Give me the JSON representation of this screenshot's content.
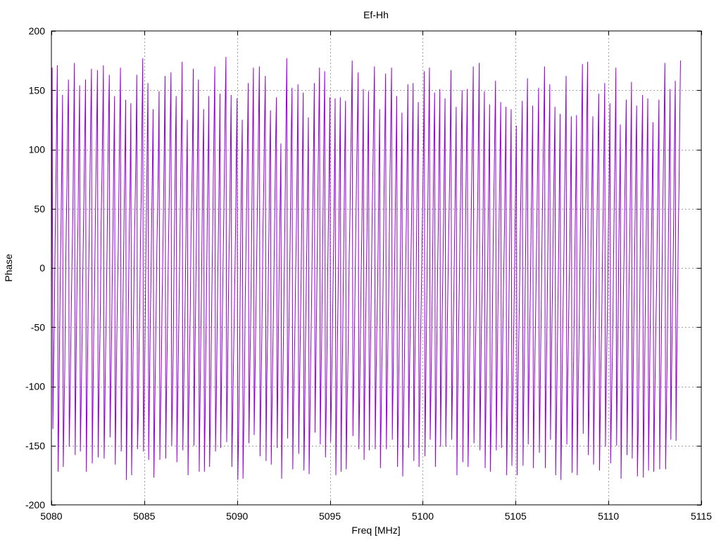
{
  "chart_data": {
    "type": "line",
    "title": "Ef-Hh",
    "xlabel": "Freq [MHz]",
    "ylabel": "Phase",
    "xlim": [
      5080,
      5115
    ],
    "ylim": [
      -200,
      200
    ],
    "xticks": [
      5080,
      5085,
      5090,
      5095,
      5100,
      5105,
      5110,
      5115
    ],
    "yticks": [
      -200,
      -150,
      -100,
      -50,
      0,
      50,
      100,
      150,
      200
    ],
    "grid": true,
    "legend": "none",
    "series": [
      {
        "color": "#9400d3",
        "x_start": 5080.0,
        "x_step": 0.04,
        "values": [
          -45,
          169,
          -136,
          -81,
          -40,
          23,
          65,
          121,
          171,
          -172,
          -128,
          -61,
          -8,
          38,
          87,
          146,
          -168,
          -126,
          -85,
          -15,
          35,
          69,
          125,
          159,
          -151,
          -117,
          -70,
          -25,
          15,
          49,
          117,
          173,
          -158,
          -98,
          -37,
          6,
          46,
          107,
          154,
          -155,
          -117,
          -74,
          -18,
          26,
          67,
          117,
          159,
          -172,
          -116,
          -61,
          -11,
          31,
          79,
          128,
          168,
          -165,
          -114,
          -56,
          -23,
          29,
          79,
          120,
          167,
          -160,
          -111,
          -72,
          -32,
          38,
          75,
          119,
          171,
          -161,
          -121,
          -70,
          -29,
          18,
          80,
          128,
          163,
          -143,
          -103,
          -59,
          -8,
          39,
          95,
          145,
          -166,
          -115,
          -63,
          -18,
          15,
          69,
          123,
          169,
          -155,
          -98,
          -41,
          -2,
          51,
          93,
          142,
          -179,
          -119,
          -65,
          -14,
          36,
          72,
          139,
          -175,
          -124,
          -70,
          -23,
          28,
          63,
          107,
          163,
          -153,
          -123,
          -70,
          -31,
          25,
          64,
          126,
          177,
          -155,
          -110,
          -60,
          -2,
          47,
          104,
          156,
          -162,
          -108,
          -53,
          -13,
          40,
          85,
          134,
          -177,
          -129,
          -84,
          -38,
          16,
          49,
          92,
          149,
          -162,
          -122,
          -86,
          -31,
          7,
          57,
          107,
          162,
          -161,
          -106,
          -65,
          -8,
          33,
          72,
          124,
          165,
          -150,
          -112,
          -70,
          -7,
          49,
          103,
          145,
          -164,
          -114,
          -72,
          -24,
          20,
          74,
          113,
          174,
          -154,
          -112,
          -72,
          -30,
          16,
          74,
          125,
          -175,
          -118,
          -76,
          -35,
          27,
          64,
          104,
          168,
          -150,
          -88,
          -40,
          15,
          61,
          111,
          159,
          -172,
          -120,
          -68,
          -21,
          38,
          94,
          134,
          -172,
          -126,
          -66,
          -9,
          45,
          91,
          145,
          -168,
          -132,
          -77,
          -24,
          21,
          77,
          122,
          170,
          -155,
          -113,
          -62,
          -10,
          34,
          85,
          147,
          -152,
          -99,
          -51,
          -3,
          38,
          86,
          138,
          178,
          -147,
          -103,
          -46,
          4,
          41,
          97,
          146,
          -168,
          -129,
          -87,
          -47,
          -9,
          35,
          97,
          143,
          -179,
          -142,
          -98,
          -31,
          31,
          82,
          125,
          -178,
          -135,
          -92,
          -25,
          14,
          60,
          107,
          156,
          -148,
          -99,
          -58,
          -8,
          53,
          115,
          169,
          -141,
          -100,
          -55,
          -12,
          35,
          80,
          126,
          170,
          -159,
          -116,
          -74,
          -21,
          37,
          74,
          123,
          162,
          -163,
          -99,
          -59,
          -11,
          33,
          95,
          133,
          -166,
          -121,
          -77,
          -34,
          10,
          60,
          110,
          144,
          -152,
          -97,
          -37,
          17,
          55,
          105,
          -178,
          -124,
          -78,
          -32,
          20,
          71,
          131,
          177,
          -144,
          -84,
          -45,
          3,
          51,
          116,
          152,
          -170,
          -117,
          -82,
          -46,
          1,
          40,
          98,
          155,
          -157,
          -107,
          -64,
          -21,
          35,
          91,
          148,
          -171,
          -132,
          -67,
          -19,
          21,
          70,
          127,
          -174,
          -134,
          -84,
          -41,
          7,
          57,
          102,
          156,
          -139,
          -87,
          -38,
          16,
          72,
          124,
          169,
          -149,
          -97,
          -55,
          5,
          60,
          120,
          166,
          -160,
          -121,
          -74,
          -6,
          41,
          85,
          144,
          -147,
          -110,
          -73,
          -23,
          21,
          73,
          143,
          -175,
          -122,
          -69,
          -24,
          27,
          91,
          144,
          -172,
          -114,
          -72,
          -13,
          39,
          99,
          141,
          -170,
          -127,
          -89,
          -48,
          10,
          44,
          91,
          131,
          175,
          -142,
          -101,
          -59,
          -7,
          37,
          85,
          122,
          165,
          -153,
          -111,
          -61,
          -6,
          31,
          87,
          151,
          -162,
          -103,
          -52,
          -9,
          32,
          100,
          149,
          -154,
          -95,
          -52,
          -2,
          50,
          87,
          132,
          170,
          -153,
          -102,
          -58,
          -24,
          21,
          84,
          134,
          -169,
          -127,
          -79,
          -44,
          9,
          70,
          118,
          164,
          -153,
          -108,
          -66,
          -30,
          29,
          82,
          123,
          169,
          -145,
          -101,
          -47,
          -3,
          47,
          95,
          145,
          -168,
          -123,
          -78,
          -31,
          17,
          79,
          131,
          -176,
          -131,
          -92,
          -48,
          3,
          42,
          99,
          155,
          -152,
          -98,
          -56,
          2,
          44,
          103,
          156,
          -163,
          -99,
          -55,
          -14,
          47,
          97,
          140,
          -168,
          -118,
          -64,
          -26,
          18,
          61,
          103,
          166,
          -159,
          -106,
          -49,
          11,
          60,
          117,
          169,
          -145,
          -106,
          -59,
          -7,
          51,
          104,
          148,
          -168,
          -119,
          -63,
          -2,
          38,
          104,
          151,
          -151,
          -93,
          -46,
          -7,
          39,
          93,
          143,
          -151,
          -106,
          -52,
          -10,
          29,
          68,
          112,
          167,
          -145,
          -101,
          -54,
          -15,
          33,
          79,
          136,
          -175,
          -112,
          -65,
          -23,
          23,
          64,
          113,
          150,
          -164,
          -105,
          -50,
          1,
          60,
          110,
          151,
          -168,
          -126,
          -79,
          -29,
          33,
          77,
          117,
          170,
          -148,
          -104,
          -68,
          -32,
          15,
          60,
          115,
          173,
          -154,
          -104,
          -49,
          -14,
          31,
          98,
          149,
          -169,
          -117,
          -70,
          -21,
          34,
          81,
          138,
          -172,
          -134,
          -91,
          -26,
          32,
          71,
          117,
          158,
          -154,
          -99,
          -44,
          -2,
          50,
          96,
          140,
          -152,
          -97,
          -45,
          -6,
          31,
          86,
          136,
          -175,
          -128,
          -87,
          -31,
          26,
          79,
          134,
          -167,
          -120,
          -76,
          -30,
          22,
          73,
          120,
          -175,
          -114,
          -71,
          -34,
          18,
          59,
          101,
          141,
          -167,
          -112,
          -65,
          -11,
          44,
          110,
          160,
          -149,
          -101,
          -53,
          -15,
          41,
          81,
          137,
          -169,
          -116,
          -76,
          -37,
          6,
          57,
          104,
          152,
          -156,
          -111,
          -58,
          -4,
          43,
          88,
          124,
          170,
          -169,
          -106,
          -61,
          -9,
          48,
          105,
          155,
          -145,
          -90,
          -43,
          -3,
          53,
          93,
          136,
          -175,
          -127,
          -83,
          -28,
          15,
          76,
          130,
          -179,
          -132,
          -73,
          -31,
          11,
          63,
          106,
          162,
          -149,
          -100,
          -63,
          -18,
          18,
          73,
          128,
          -173,
          -122,
          -81,
          -41,
          24,
          69,
          129,
          -175,
          -115,
          -75,
          -27,
          21,
          67,
          126,
          172,
          -140,
          -85,
          -33,
          29,
          76,
          134,
          174,
          -158,
          -117,
          -74,
          -12,
          39,
          82,
          128,
          -166,
          -114,
          -71,
          -32,
          10,
          59,
          107,
          147,
          -171,
          -122,
          -79,
          -43,
          9,
          53,
          103,
          156,
          -151,
          -97,
          -59,
          -21,
          35,
          81,
          139,
          -165,
          -122,
          -85,
          -46,
          15,
          64,
          106,
          169,
          -150,
          -93,
          -43,
          19,
          63,
          121,
          -178,
          -118,
          -71,
          -29,
          10,
          58,
          102,
          142,
          -158,
          -108,
          -42,
          -3,
          38,
          97,
          157,
          -161,
          -108,
          -55,
          -4,
          46,
          97,
          137,
          -176,
          -138,
          -88,
          -37,
          22,
          65,
          103,
          146,
          -177,
          -123,
          -67,
          -16,
          34,
          99,
          143,
          -171,
          -117,
          -61,
          -17,
          30,
          73,
          123,
          -172,
          -126,
          -87,
          -44,
          -8,
          40,
          95,
          142,
          -170,
          -115,
          -75,
          -13,
          40,
          86,
          127,
          173,
          -170,
          -124,
          -82,
          -18,
          42,
          95,
          151,
          -145,
          -93,
          -44,
          0,
          51,
          112,
          158,
          -146,
          -81,
          -33,
          25,
          69,
          123,
          175
        ]
      }
    ]
  }
}
